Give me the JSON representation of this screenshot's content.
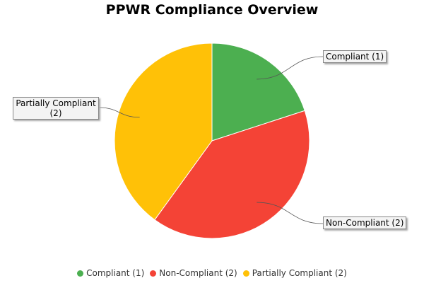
{
  "chart_data": {
    "type": "pie",
    "title": "PPWR Compliance Overview",
    "categories": [
      "Compliant (1)",
      "Non-Compliant (2)",
      "Partially Compliant (2)"
    ],
    "values": [
      1,
      2,
      2
    ],
    "colors": [
      "#4caf50",
      "#f44336",
      "#ffc107"
    ],
    "legend": "bottom"
  }
}
